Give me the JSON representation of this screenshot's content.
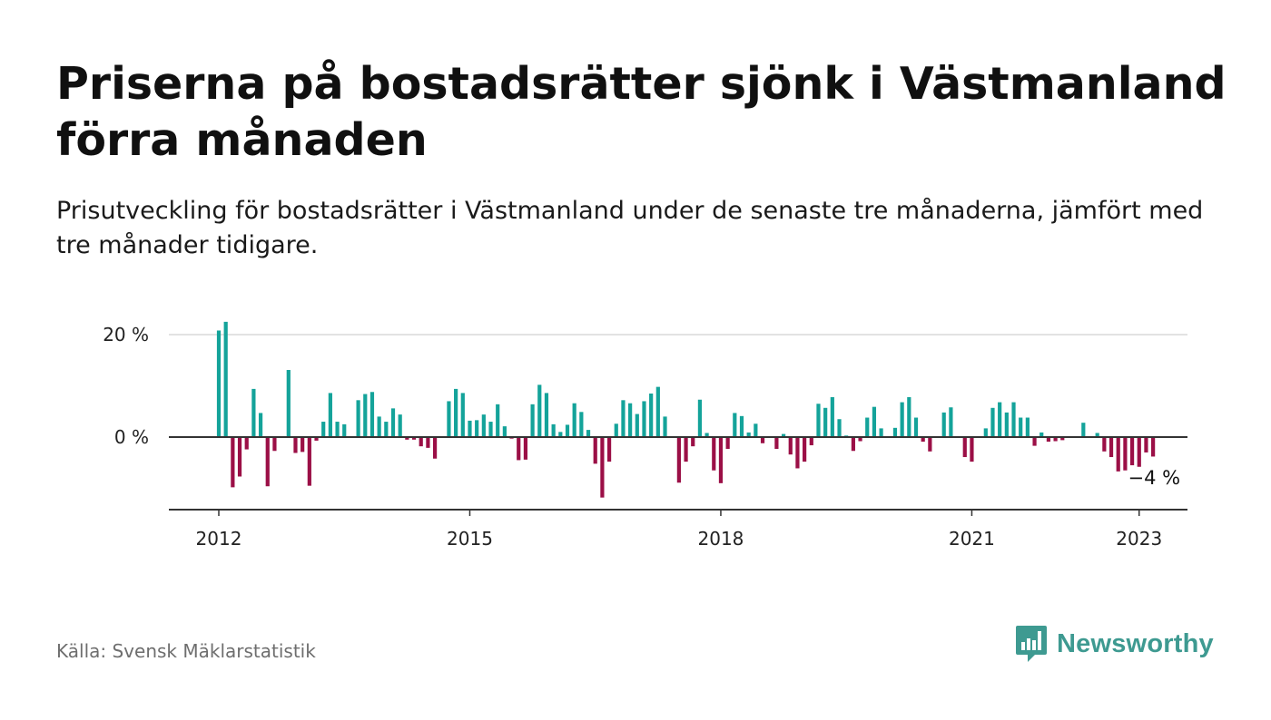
{
  "title": "Priserna på bostadsrätter sjönk i Västmanland förra månaden",
  "subtitle": "Prisutveckling för bostadsrätter i Västmanland under de senaste tre månaderna, jämfört med tre månader tidigare.",
  "source": "Källa: Svensk Mäklarstatistik",
  "brand": "Newsworthy",
  "colors": {
    "positive": "#14a39a",
    "negative": "#9b0f46",
    "grid": "#d9d9d9",
    "axis": "#333333",
    "brand": "#3e9a91"
  },
  "chart_data": {
    "type": "bar",
    "start": "2012-01",
    "xlabel": "",
    "ylabel": "",
    "ylim": [
      -14,
      22
    ],
    "y_ticks": [
      {
        "value": 0,
        "label": "0 %"
      },
      {
        "value": 20,
        "label": "20 %"
      }
    ],
    "x_ticks": [
      {
        "value": "2012-01",
        "label": "2012"
      },
      {
        "value": "2015-01",
        "label": "2015"
      },
      {
        "value": "2018-01",
        "label": "2018"
      },
      {
        "value": "2021-01",
        "label": "2021"
      },
      {
        "value": "2023-01",
        "label": "2023"
      }
    ],
    "last_label": "−4 %",
    "grid": true,
    "values": [
      20.8,
      22.5,
      -9.8,
      -7.7,
      -2.4,
      9.4,
      4.7,
      -9.6,
      -2.7,
      0.0,
      13.1,
      -3.1,
      -2.9,
      -9.5,
      -0.7,
      3.0,
      8.6,
      3.0,
      2.5,
      0.0,
      7.2,
      8.4,
      8.8,
      4.0,
      3.0,
      5.6,
      4.4,
      -0.5,
      -0.5,
      -1.8,
      -2.1,
      -4.2,
      0.0,
      7.0,
      9.4,
      8.6,
      3.2,
      3.3,
      4.4,
      3.0,
      6.4,
      2.1,
      -0.3,
      -4.5,
      -4.4,
      6.4,
      10.2,
      8.6,
      2.5,
      1.0,
      2.4,
      6.6,
      4.9,
      1.4,
      -5.2,
      -11.8,
      -4.8,
      2.6,
      7.2,
      6.6,
      4.5,
      7.0,
      8.5,
      9.8,
      4.0,
      0.0,
      -8.9,
      -4.8,
      -1.8,
      7.3,
      0.8,
      -6.5,
      -9.0,
      -2.3,
      4.7,
      4.1,
      0.9,
      2.6,
      -1.2,
      0.0,
      -2.3,
      0.6,
      -3.4,
      -6.1,
      -4.8,
      -1.6,
      6.5,
      5.7,
      7.8,
      3.5,
      0.3,
      -2.7,
      -0.8,
      3.8,
      5.9,
      1.7,
      0.0,
      1.8,
      6.8,
      7.8,
      3.8,
      -0.9,
      -2.8,
      0.0,
      4.8,
      5.8,
      0.0,
      -3.9,
      -4.8,
      0.0,
      1.7,
      5.7,
      6.8,
      4.8,
      6.8,
      3.8,
      3.8,
      -1.7,
      0.9,
      -0.9,
      -0.8,
      -0.6,
      0.0,
      0.0,
      2.8,
      0.0,
      0.8,
      -2.8,
      -3.9,
      -6.7,
      -6.5,
      -5.5,
      -5.8,
      -3.0,
      -3.8
    ]
  }
}
